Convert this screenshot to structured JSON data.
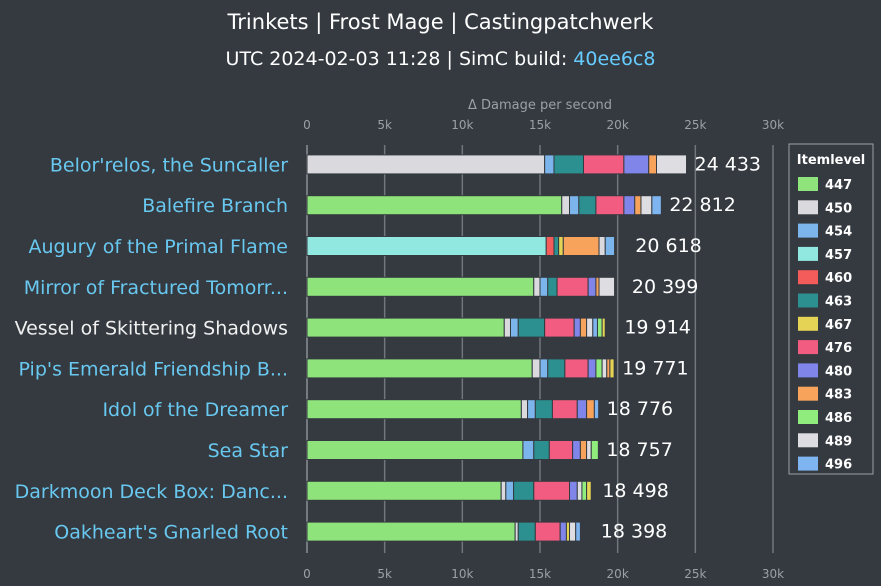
{
  "header": {
    "title": "Trinkets | Frost Mage | Castingpatchwerk",
    "subtitle_prefix": "UTC 2024-02-03 11:28 | SimC build: ",
    "build": "40ee6c8"
  },
  "chart_data": {
    "type": "bar",
    "orientation": "horizontal",
    "stacked": true,
    "xlabel": "Δ Damage per second",
    "xlim": [
      0,
      30000
    ],
    "xticks": [
      0,
      5000,
      10000,
      15000,
      20000,
      25000,
      30000
    ],
    "xtick_labels": [
      "0",
      "5k",
      "10k",
      "15k",
      "20k",
      "25k",
      "30k"
    ],
    "grid": true,
    "legend_title": "Itemlevel",
    "legend_position": "right",
    "itemlevels": [
      447,
      450,
      454,
      457,
      460,
      463,
      467,
      476,
      480,
      483,
      486,
      489,
      496
    ],
    "colors": [
      "#8ee37a",
      "#d9d9de",
      "#7cb5ec",
      "#91e8e1",
      "#f45b5b",
      "#2b908f",
      "#e4d354",
      "#f15c80",
      "#8085e9",
      "#f7a35c",
      "#90ed7d",
      "#dddde2",
      "#7eb4f0"
    ],
    "categories": [
      "Belor'relos, the Suncaller",
      "Balefire Branch",
      "Augury of the Primal Flame",
      "Mirror of Fractured Tomorr...",
      "Vessel of Skittering Shadows",
      "Pip's Emerald Friendship B...",
      "Idol of the Dreamer",
      "Sea Star",
      "Darkmoon Deck Box: Danc...",
      "Oakheart's Gnarled Root"
    ],
    "white_labels": [
      4
    ],
    "totals": [
      24433,
      22812,
      20618,
      20399,
      19914,
      19771,
      18776,
      18757,
      18498,
      18398
    ],
    "total_labels": [
      "24 433",
      "22 812",
      "20 618",
      "20 399",
      "19 914",
      "19 771",
      "18 776",
      "18 757",
      "18 498",
      "18 398"
    ],
    "segments": [
      [
        [
          1,
          15300
        ],
        [
          2,
          600
        ],
        [
          5,
          1900
        ],
        [
          7,
          2600
        ],
        [
          8,
          1600
        ],
        [
          9,
          500
        ],
        [
          11,
          1933
        ]
      ],
      [
        [
          0,
          16400
        ],
        [
          1,
          500
        ],
        [
          2,
          600
        ],
        [
          5,
          1100
        ],
        [
          7,
          1800
        ],
        [
          8,
          700
        ],
        [
          9,
          400
        ],
        [
          11,
          700
        ],
        [
          12,
          612
        ]
      ],
      [
        [
          3,
          15400
        ],
        [
          4,
          500
        ],
        [
          5,
          300
        ],
        [
          6,
          300
        ],
        [
          9,
          2300
        ],
        [
          1,
          400
        ],
        [
          2,
          600
        ]
      ],
      [
        [
          0,
          14600
        ],
        [
          1,
          400
        ],
        [
          2,
          500
        ],
        [
          5,
          600
        ],
        [
          7,
          2000
        ],
        [
          8,
          500
        ],
        [
          9,
          200
        ],
        [
          11,
          1000
        ]
      ],
      [
        [
          0,
          12700
        ],
        [
          1,
          400
        ],
        [
          2,
          500
        ],
        [
          5,
          1700
        ],
        [
          7,
          1900
        ],
        [
          8,
          400
        ],
        [
          9,
          400
        ],
        [
          11,
          400
        ],
        [
          12,
          300
        ],
        [
          10,
          300
        ],
        [
          6,
          200
        ]
      ],
      [
        [
          0,
          14500
        ],
        [
          1,
          500
        ],
        [
          2,
          500
        ],
        [
          5,
          1100
        ],
        [
          7,
          1500
        ],
        [
          8,
          500
        ],
        [
          10,
          400
        ],
        [
          11,
          300
        ],
        [
          9,
          200
        ],
        [
          6,
          271
        ]
      ],
      [
        [
          0,
          13800
        ],
        [
          1,
          400
        ],
        [
          2,
          500
        ],
        [
          5,
          1100
        ],
        [
          7,
          1600
        ],
        [
          8,
          600
        ],
        [
          9,
          500
        ],
        [
          12,
          276
        ]
      ],
      [
        [
          0,
          13900
        ],
        [
          2,
          700
        ],
        [
          5,
          1000
        ],
        [
          7,
          1500
        ],
        [
          8,
          500
        ],
        [
          9,
          400
        ],
        [
          11,
          300
        ],
        [
          10,
          457
        ]
      ],
      [
        [
          0,
          12500
        ],
        [
          1,
          300
        ],
        [
          2,
          500
        ],
        [
          5,
          1300
        ],
        [
          7,
          2300
        ],
        [
          8,
          500
        ],
        [
          11,
          300
        ],
        [
          10,
          300
        ],
        [
          6,
          298
        ]
      ],
      [
        [
          0,
          13400
        ],
        [
          1,
          200
        ],
        [
          5,
          1100
        ],
        [
          7,
          1600
        ],
        [
          8,
          400
        ],
        [
          6,
          200
        ],
        [
          11,
          400
        ],
        [
          12,
          300
        ],
        [
          10,
          0
        ]
      ]
    ]
  }
}
